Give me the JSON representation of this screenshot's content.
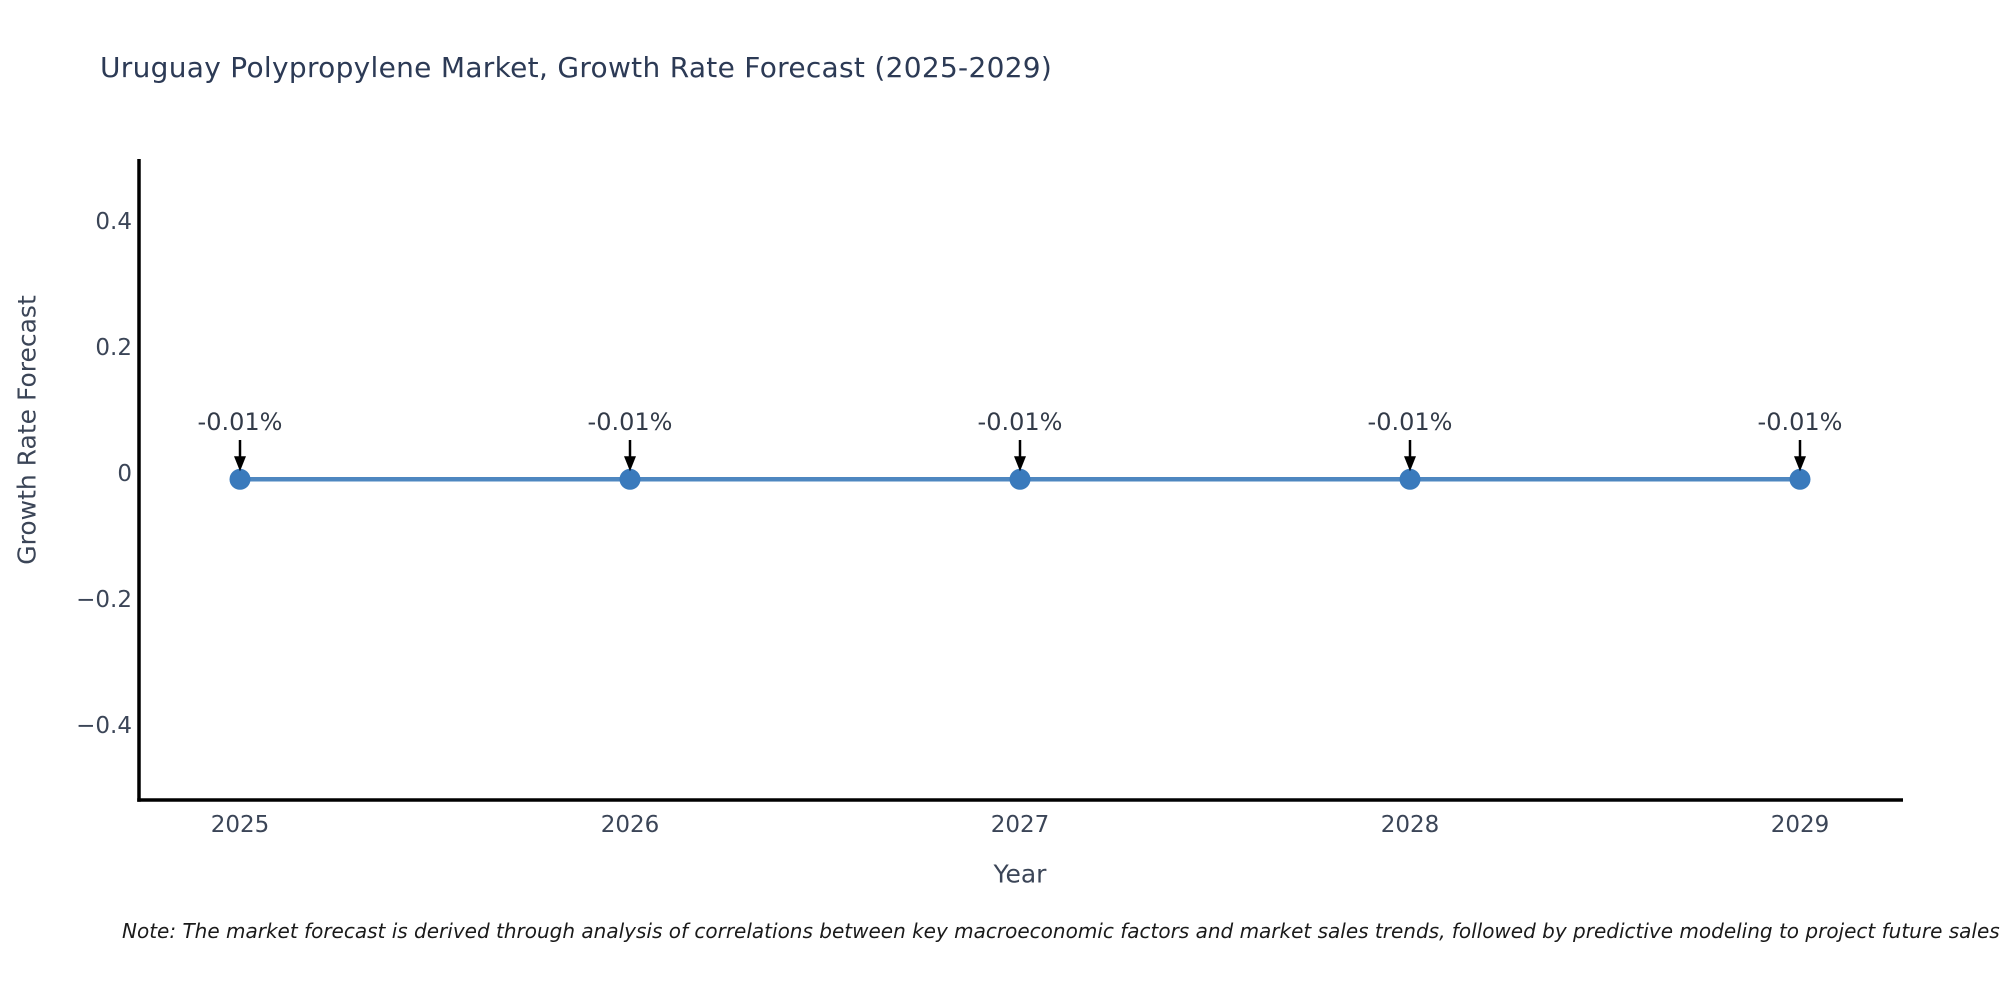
{
  "chart_data": {
    "type": "line",
    "title": "Uruguay Polypropylene Market, Growth Rate Forecast (2025-2029)",
    "xlabel": "Year",
    "ylabel": "Growth Rate Forecast",
    "x": [
      2025,
      2026,
      2027,
      2028,
      2029
    ],
    "xtick_labels": [
      "2025",
      "2026",
      "2027",
      "2028",
      "2029"
    ],
    "series": [
      {
        "name": "Growth Rate Forecast",
        "values": [
          -0.01,
          -0.01,
          -0.01,
          -0.01,
          -0.01
        ]
      }
    ],
    "point_labels": [
      "-0.01%",
      "-0.01%",
      "-0.01%",
      "-0.01%",
      "-0.01%"
    ],
    "yticks": [
      0.4,
      0.2,
      0,
      -0.2,
      -0.4
    ],
    "ytick_labels": [
      "0.4",
      "0.2",
      "0",
      "−0.2",
      "−0.4"
    ],
    "ylim": [
      -0.52,
      0.5
    ],
    "grid": false,
    "legend": false,
    "colors": {
      "line": "#4e87c0",
      "marker": "#3a7abc",
      "axis": "#000000",
      "tick_label": "#3b4557",
      "title": "#2c3a55",
      "axis_label": "#3b4557",
      "annotation": "#333b49",
      "arrow": "#000000",
      "note": "#1a1a1a"
    }
  },
  "note": "Note: The market forecast is derived through analysis of correlations between key macroeconomic factors and market sales trends, followed by predictive modeling to project future sales."
}
